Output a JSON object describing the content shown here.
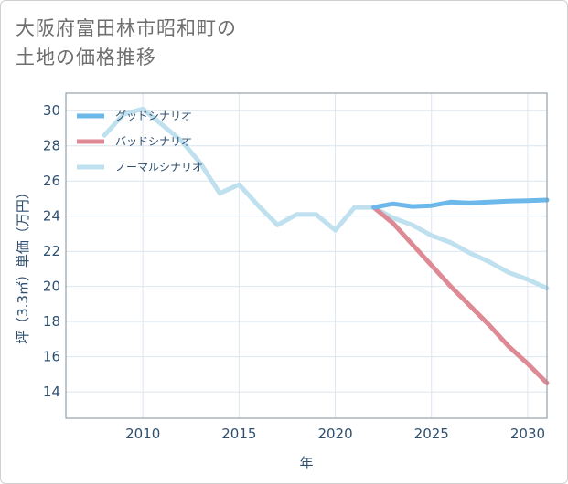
{
  "title_lines": [
    "大阪府富田林市昭和町の",
    "土地の価格推移"
  ],
  "chart_data": {
    "type": "line",
    "title": "大阪府富田林市昭和町の土地の価格推移",
    "xlabel": "年",
    "ylabel": "坪（3.3㎡）単価（万円）",
    "xlim": [
      2006,
      2031
    ],
    "ylim": [
      12.5,
      31
    ],
    "x_ticks": [
      2010,
      2015,
      2020,
      2025,
      2030
    ],
    "y_ticks": [
      14,
      16,
      18,
      20,
      22,
      24,
      26,
      28,
      30
    ],
    "grid": true,
    "legend_position": "top-left",
    "series": [
      {
        "name": "グッドシナリオ",
        "color": "#6cb8ea",
        "x": [
          2022,
          2023,
          2024,
          2025,
          2026,
          2027,
          2028,
          2029,
          2030,
          2031
        ],
        "y": [
          24.5,
          24.7,
          24.55,
          24.6,
          24.8,
          24.75,
          24.8,
          24.85,
          24.88,
          24.92
        ]
      },
      {
        "name": "バッドシナリオ",
        "color": "#dd8a94",
        "x": [
          2022,
          2023,
          2024,
          2025,
          2026,
          2027,
          2028,
          2029,
          2030,
          2031
        ],
        "y": [
          24.5,
          23.6,
          22.4,
          21.2,
          20.0,
          18.9,
          17.8,
          16.6,
          15.6,
          14.5
        ]
      },
      {
        "name": "ノーマルシナリオ",
        "color": "#bfe0ee",
        "x": [
          2008,
          2009,
          2010,
          2011,
          2012,
          2013,
          2014,
          2015,
          2016,
          2017,
          2018,
          2019,
          2020,
          2021,
          2022,
          2023,
          2024,
          2025,
          2026,
          2027,
          2028,
          2029,
          2030,
          2031
        ],
        "y": [
          28.6,
          29.8,
          30.1,
          29.2,
          28.3,
          27.0,
          25.3,
          25.8,
          24.6,
          23.5,
          24.1,
          24.1,
          23.2,
          24.5,
          24.5,
          23.9,
          23.5,
          22.9,
          22.5,
          21.9,
          21.4,
          20.8,
          20.4,
          19.9
        ]
      }
    ]
  }
}
